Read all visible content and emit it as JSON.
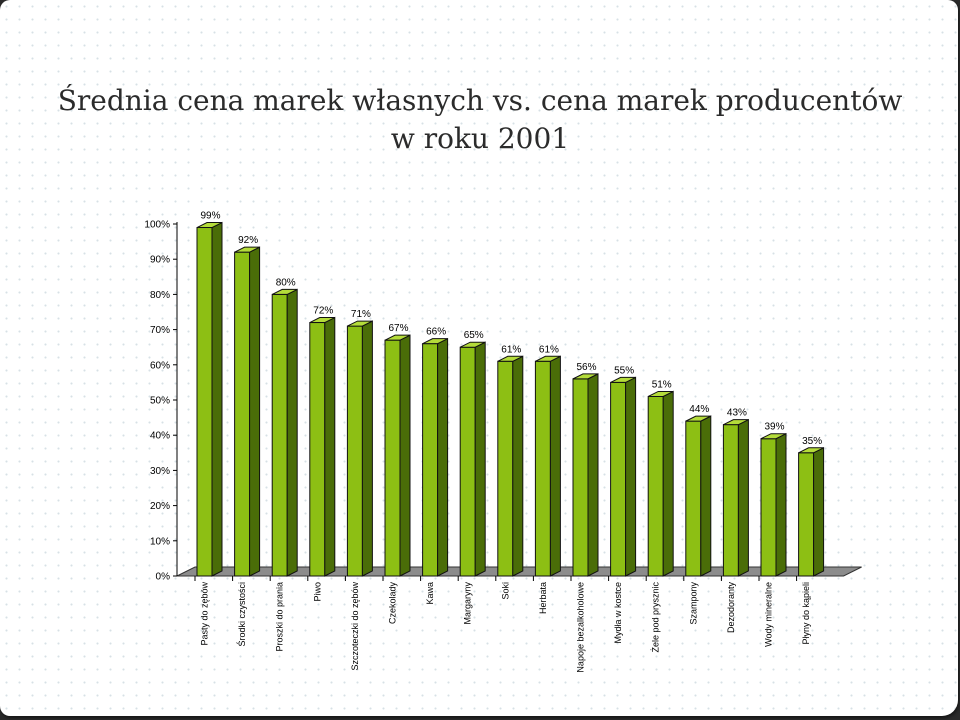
{
  "slide": {
    "title_line1": "Średnia cena marek własnych vs. cena marek producentów",
    "title_line2": "w roku 2001"
  },
  "colors": {
    "bar_front": "#8dbf14",
    "bar_side": "#4a6d08",
    "bar_top": "#b4dc3a",
    "floor": "#8c8c8c"
  },
  "chart_data": {
    "type": "bar",
    "title": "Średnia cena marek własnych vs. cena marek producentów w roku 2001",
    "xlabel": "",
    "ylabel": "",
    "ylim": [
      0,
      100
    ],
    "y_ticks": [
      "0%",
      "10%",
      "20%",
      "30%",
      "40%",
      "50%",
      "60%",
      "70%",
      "80%",
      "90%",
      "100%"
    ],
    "categories": [
      "Pasty do zębów",
      "Środki czystości",
      "Proszki do prania",
      "Piwo",
      "Szczoteczki do zębów",
      "Czekolady",
      "Kawa",
      "Margaryny",
      "Soki",
      "Herbata",
      "Napoje bezalkoholowe",
      "Mydła w kostce",
      "Żele pod prysznic",
      "Szampony",
      "Dezodoranty",
      "Wody mineralne",
      "Płyny do kąpieli"
    ],
    "values": [
      99,
      92,
      80,
      72,
      71,
      67,
      66,
      65,
      61,
      61,
      56,
      55,
      51,
      44,
      43,
      39,
      35
    ],
    "data_labels": [
      "99%",
      "92%",
      "80%",
      "72%",
      "71%",
      "67%",
      "66%",
      "65%",
      "61%",
      "61%",
      "56%",
      "55%",
      "51%",
      "44%",
      "43%",
      "39%",
      "35%"
    ],
    "grid": false,
    "legend": "none"
  }
}
